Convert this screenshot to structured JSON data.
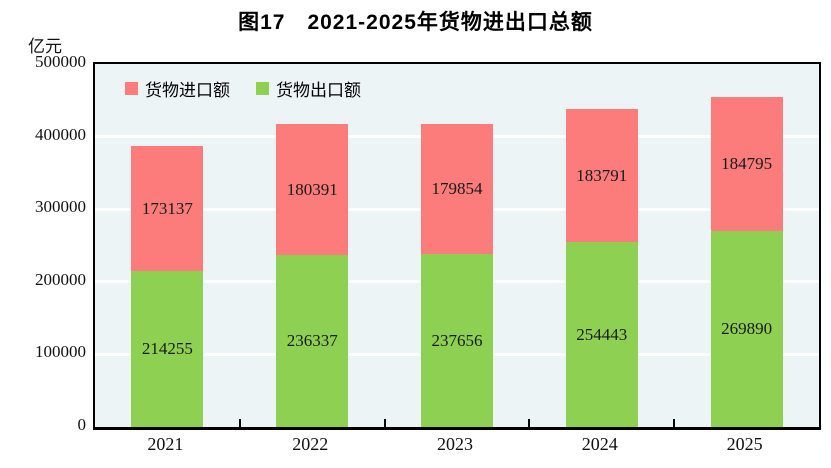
{
  "title": "图17　2021-2025年货物进出口总额",
  "unit_label": "亿元",
  "colors": {
    "import": "#fc7b7b",
    "export": "#8ed052",
    "plot_bg": "#edf4f6",
    "grid": "#ffffff",
    "axis": "#000000",
    "label_text": "#1a1a1a"
  },
  "legend": [
    {
      "label": "货物进口额",
      "color_key": "import"
    },
    {
      "label": "货物出口额",
      "color_key": "export"
    }
  ],
  "chart_data": {
    "type": "bar",
    "stacked": true,
    "title": "图17　2021-2025年货物进出口总额",
    "ylabel": "亿元",
    "categories": [
      "2021",
      "2022",
      "2023",
      "2024",
      "2025"
    ],
    "series": [
      {
        "name": "货物出口额",
        "color_key": "export",
        "values": [
          214255,
          236337,
          237656,
          254443,
          269890
        ]
      },
      {
        "name": "货物进口额",
        "color_key": "import",
        "values": [
          173137,
          180391,
          179854,
          183791,
          184795
        ]
      }
    ],
    "ylim": [
      0,
      500000
    ],
    "yticks": [
      0,
      100000,
      200000,
      300000,
      400000,
      500000
    ],
    "grid": "horizontal-white",
    "legend_position": "top-left-inside"
  }
}
